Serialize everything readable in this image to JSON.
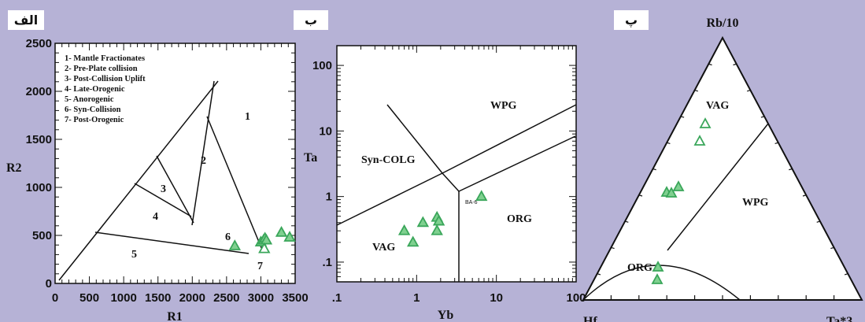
{
  "colors": {
    "background": "#b6b2d6",
    "plot_bg": "#ffffff",
    "marker": "#3aa65a",
    "marker_fill": "#7fd08f"
  },
  "chart_data": [
    {
      "type": "scatter",
      "panel_label": "الف",
      "xlabel": "R1",
      "ylabel": "R2",
      "xlim": [
        0,
        3500
      ],
      "ylim": [
        0,
        2500
      ],
      "x_ticks": [
        "0",
        "500",
        "1000",
        "1500",
        "2000",
        "2500",
        "3000",
        "3500"
      ],
      "y_ticks": [
        "0",
        "500",
        "1000",
        "1500",
        "2000",
        "2500"
      ],
      "legend": [
        "1- Mantle Fractionates",
        "2- Pre-Plate collision",
        "3- Post-Collision Uplift",
        "4- Late-Orogenic",
        "5- Anorogenic",
        "6- Syn-Collision",
        "7- Post-Orogenic"
      ],
      "field_labels": [
        "1",
        "2",
        "3",
        "4",
        "5",
        "6",
        "7"
      ],
      "x": [
        2620,
        3000,
        3040,
        3060,
        3080,
        3050,
        3300,
        3420
      ],
      "y": [
        390,
        430,
        450,
        470,
        450,
        360,
        530,
        480
      ]
    },
    {
      "type": "scatter",
      "panel_label": "ب",
      "xlabel": "Yb",
      "ylabel": "Ta",
      "scale": "log-log",
      "xlim": [
        0.1,
        100
      ],
      "ylim": [
        0.05,
        200
      ],
      "x_ticks": [
        ".1",
        "1",
        "10",
        "100"
      ],
      "y_ticks": [
        ".1",
        "1",
        "10",
        "100"
      ],
      "field_labels": [
        "WPG",
        "Syn-COLG",
        "ORG",
        "VAG"
      ],
      "annotations": [
        "BA-6"
      ],
      "x": [
        0.7,
        0.9,
        1.2,
        1.8,
        1.9,
        1.8,
        6.5
      ],
      "y": [
        0.3,
        0.2,
        0.4,
        0.48,
        0.42,
        0.3,
        1.0
      ]
    },
    {
      "type": "scatter",
      "panel_label": "پ",
      "diagram": "ternary",
      "vertex_labels": [
        "Rb/10",
        "Hf",
        "Ta*3"
      ],
      "field_labels": [
        "VAG",
        "WPG",
        "ORG"
      ],
      "points_count": 7
    }
  ]
}
